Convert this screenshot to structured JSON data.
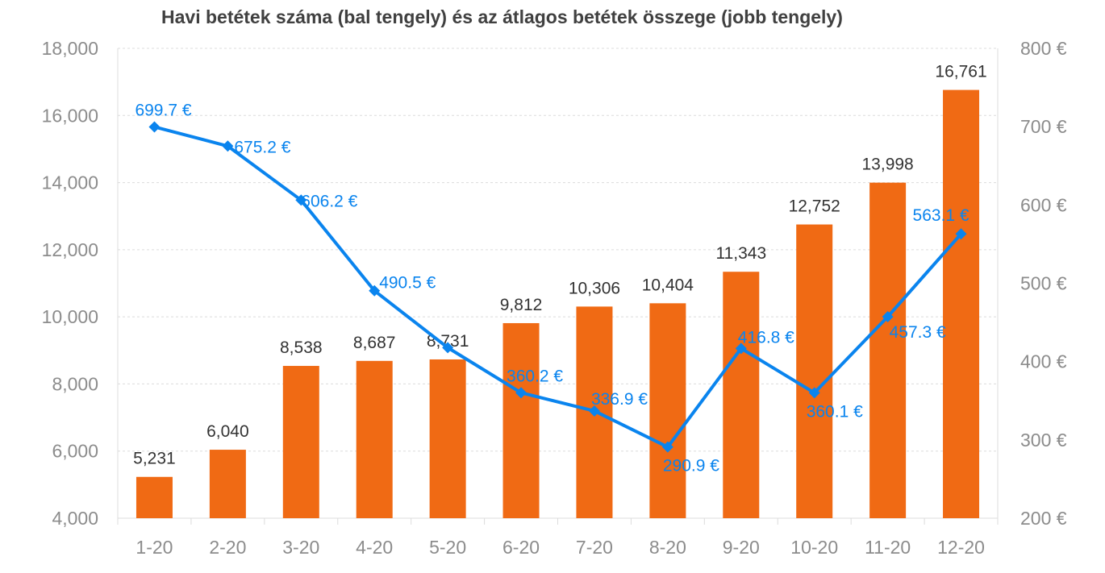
{
  "chart_data": {
    "type": "bar",
    "title": "Havi betétek száma (bal tengely) és az átlagos betétek összege (jobb tengely)",
    "categories": [
      "1-20",
      "2-20",
      "3-20",
      "4-20",
      "5-20",
      "6-20",
      "7-20",
      "8-20",
      "9-20",
      "10-20",
      "11-20",
      "12-20"
    ],
    "series": [
      {
        "type": "bar",
        "axis": "left",
        "values": [
          5231,
          6040,
          8538,
          8687,
          8731,
          9812,
          10306,
          10404,
          11343,
          12752,
          13998,
          16761
        ],
        "labels": [
          "5,231",
          "6,040",
          "8,538",
          "8,687",
          "8,731",
          "9,812",
          "10,306",
          "10,404",
          "11,343",
          "12,752",
          "13,998",
          "16,761"
        ],
        "color": "#f06a14"
      },
      {
        "type": "line",
        "axis": "right",
        "marker": "diamond",
        "values": [
          699.7,
          675.2,
          606.2,
          490.5,
          417.8,
          360.2,
          336.9,
          290.9,
          416.8,
          360.1,
          457.3,
          563.1
        ],
        "labels": [
          "699.7 €",
          "675.2 €",
          "606.2 €",
          "490.5 €",
          "",
          "360.2 €",
          "336.9 €",
          "290.9 €",
          "416.8 €",
          "360.1 €",
          "457.3 €",
          "563.1 €"
        ],
        "color": "#0a84ee"
      }
    ],
    "y_left": {
      "ylim": [
        4000,
        18000
      ],
      "ticks": [
        "4,000",
        "6,000",
        "8,000",
        "10,000",
        "12,000",
        "14,000",
        "16,000",
        "18,000"
      ]
    },
    "y_right": {
      "ylim": [
        200,
        800
      ],
      "ticks": [
        "200 €",
        "300 €",
        "400 €",
        "500 €",
        "600 €",
        "700 €",
        "800 €"
      ]
    },
    "grid": true,
    "legend": "none",
    "colors": {
      "bar": "#f06a14",
      "line": "#0a84ee",
      "grid": "#dcdcdc",
      "axis_text": "#8c8c8c",
      "title_text": "#404040"
    }
  }
}
